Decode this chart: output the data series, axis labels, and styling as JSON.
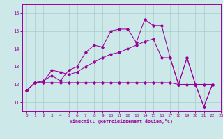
{
  "background_color": "#cce8e8",
  "grid_color": "#aacccc",
  "line_color": "#990099",
  "xlabel": "Windchill (Refroidissement éolien,°C)",
  "xlim": [
    -0.5,
    23
  ],
  "ylim": [
    10.5,
    16.5
  ],
  "yticks": [
    11,
    12,
    13,
    14,
    15,
    16
  ],
  "xticks": [
    0,
    1,
    2,
    3,
    4,
    5,
    6,
    7,
    8,
    9,
    10,
    11,
    12,
    13,
    14,
    15,
    16,
    17,
    18,
    19,
    20,
    21,
    22,
    23
  ],
  "line1_x": [
    0,
    1,
    2,
    3,
    4,
    5,
    6,
    7,
    8,
    9,
    10,
    11,
    12,
    13,
    14,
    15,
    16,
    17,
    18,
    19,
    20,
    21,
    22
  ],
  "line1_y": [
    11.65,
    12.1,
    12.2,
    12.5,
    12.2,
    12.8,
    13.0,
    13.8,
    14.2,
    14.1,
    15.0,
    15.1,
    15.1,
    14.35,
    15.65,
    15.3,
    15.3,
    13.5,
    12.0,
    13.5,
    12.0,
    10.75,
    12.0
  ],
  "line2_x": [
    0,
    1,
    2,
    3,
    4,
    5,
    6,
    7,
    8,
    9,
    10,
    11,
    12,
    13,
    14,
    15,
    16,
    17,
    18,
    19,
    20,
    21,
    22
  ],
  "line2_y": [
    11.65,
    12.1,
    12.1,
    12.1,
    12.1,
    12.1,
    12.1,
    12.1,
    12.1,
    12.1,
    12.1,
    12.1,
    12.1,
    12.1,
    12.1,
    12.1,
    12.1,
    12.1,
    12.0,
    12.0,
    12.0,
    12.0,
    12.0
  ],
  "line3_x": [
    0,
    1,
    2,
    3,
    4,
    5,
    6,
    7,
    8,
    9,
    10,
    11,
    12,
    13,
    14,
    15,
    16,
    17,
    18,
    19,
    20,
    21,
    22
  ],
  "line3_y": [
    11.65,
    12.1,
    12.15,
    12.8,
    12.7,
    12.55,
    12.7,
    13.0,
    13.25,
    13.5,
    13.7,
    13.8,
    14.0,
    14.2,
    14.4,
    14.55,
    13.5,
    13.5,
    12.0,
    13.5,
    12.0,
    10.75,
    12.0
  ]
}
